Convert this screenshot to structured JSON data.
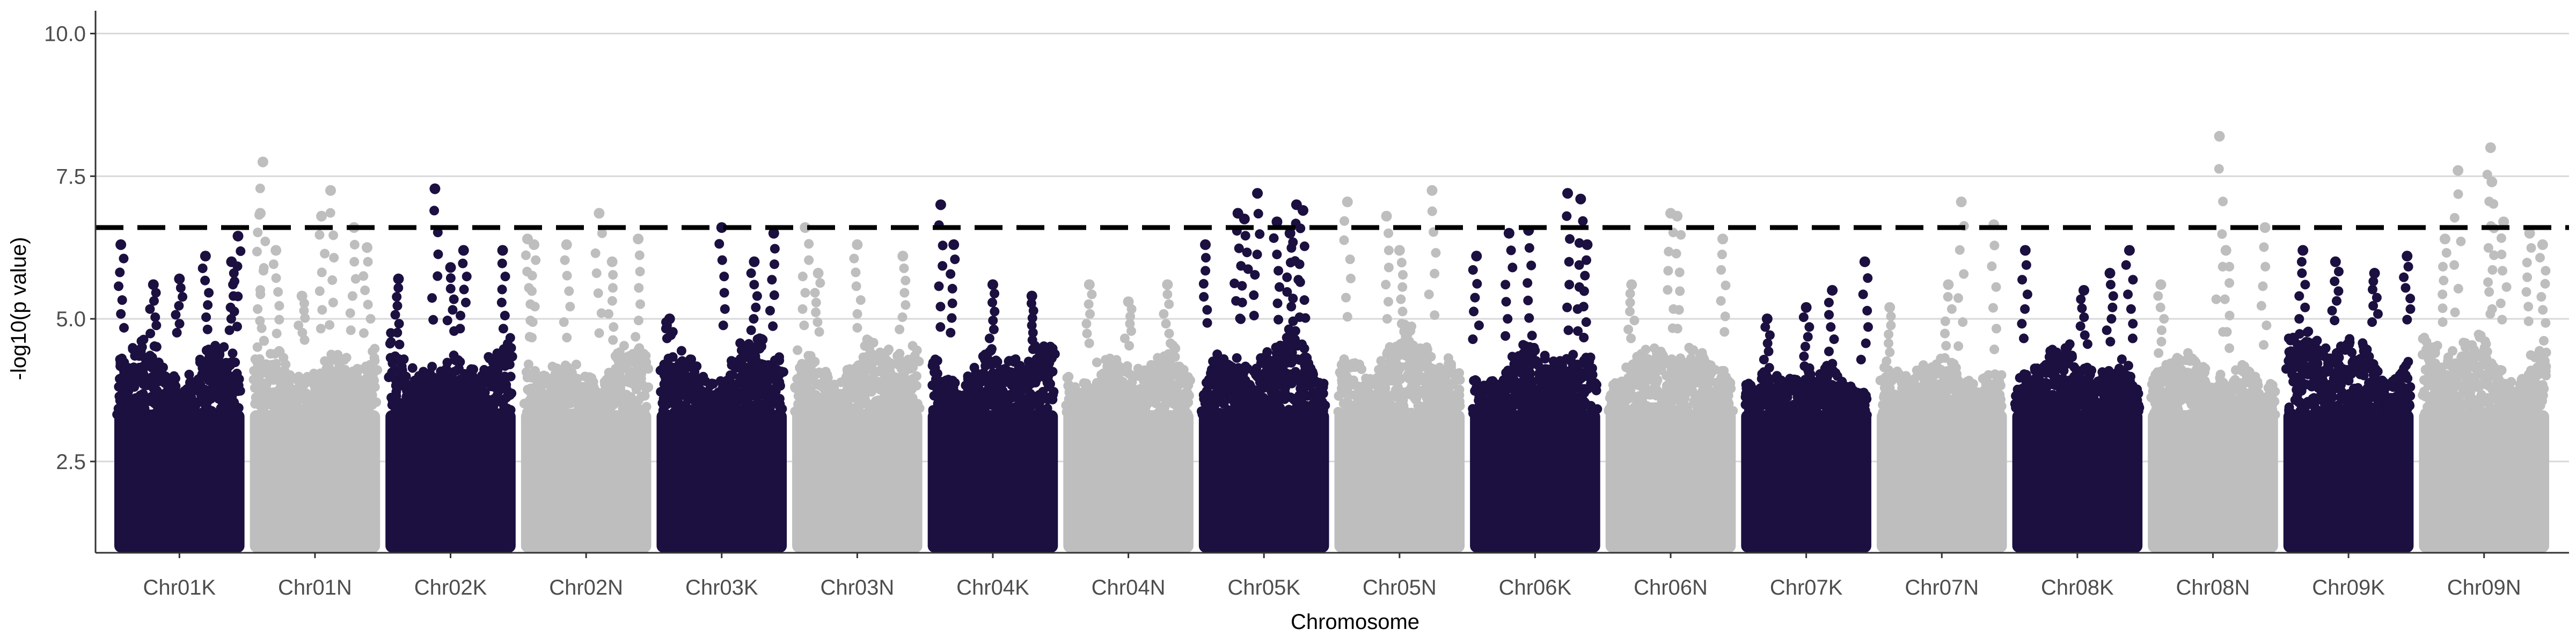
{
  "chart_data": {
    "type": "scatter",
    "subtype": "manhattan",
    "title": "",
    "xlabel": "Chromosome",
    "ylabel": "-log10(p value)",
    "ylim": [
      0.9,
      10.4
    ],
    "y_ticks": [
      2.5,
      5.0,
      7.5,
      10.0
    ],
    "y_tick_labels": [
      "2.5",
      "5.0",
      "7.5",
      "10.0"
    ],
    "grid": "horizontal major lines",
    "legend": "none",
    "threshold": {
      "value": 6.6,
      "style": "dashed",
      "color": "#000000"
    },
    "colors": {
      "odd": "#1b1040",
      "even": "#bebebe",
      "grid": "#d9d9d9",
      "axis": "#333333"
    },
    "categories": [
      "Chr01K",
      "Chr01N",
      "Chr02K",
      "Chr02N",
      "Chr03K",
      "Chr03N",
      "Chr04K",
      "Chr04N",
      "Chr05K",
      "Chr05N",
      "Chr06K",
      "Chr06N",
      "Chr07K",
      "Chr07N",
      "Chr08K",
      "Chr08N",
      "Chr09K",
      "Chr09N"
    ],
    "series": [
      {
        "chromosome": "Chr01K",
        "color": "#1b1040",
        "band_top": 4.6,
        "peaks": [
          [
            0.05,
            6.3
          ],
          [
            0.3,
            5.6
          ],
          [
            0.5,
            5.7
          ],
          [
            0.7,
            6.1
          ],
          [
            0.9,
            6.0
          ],
          [
            0.95,
            6.45
          ]
        ]
      },
      {
        "chromosome": "Chr01N",
        "color": "#bebebe",
        "band_top": 4.5,
        "peaks": [
          [
            0.1,
            7.75
          ],
          [
            0.08,
            6.85
          ],
          [
            0.2,
            6.2
          ],
          [
            0.4,
            5.4
          ],
          [
            0.55,
            6.8
          ],
          [
            0.62,
            7.25
          ],
          [
            0.8,
            6.6
          ],
          [
            0.9,
            6.25
          ]
        ]
      },
      {
        "chromosome": "Chr02K",
        "color": "#1b1040",
        "band_top": 4.6,
        "peaks": [
          [
            0.1,
            5.7
          ],
          [
            0.38,
            7.28
          ],
          [
            0.5,
            5.9
          ],
          [
            0.6,
            6.2
          ],
          [
            0.9,
            6.2
          ]
        ]
      },
      {
        "chromosome": "Chr02N",
        "color": "#bebebe",
        "band_top": 4.4,
        "peaks": [
          [
            0.05,
            6.4
          ],
          [
            0.1,
            6.3
          ],
          [
            0.35,
            6.3
          ],
          [
            0.6,
            6.85
          ],
          [
            0.7,
            6.0
          ],
          [
            0.9,
            6.4
          ]
        ]
      },
      {
        "chromosome": "Chr03K",
        "color": "#1b1040",
        "band_top": 4.6,
        "peaks": [
          [
            0.1,
            5.0
          ],
          [
            0.5,
            6.6
          ],
          [
            0.75,
            6.0
          ],
          [
            0.9,
            6.5
          ]
        ]
      },
      {
        "chromosome": "Chr03N",
        "color": "#bebebe",
        "band_top": 4.6,
        "peaks": [
          [
            0.1,
            6.6
          ],
          [
            0.2,
            5.8
          ],
          [
            0.5,
            6.3
          ],
          [
            0.85,
            6.1
          ]
        ]
      },
      {
        "chromosome": "Chr04K",
        "color": "#1b1040",
        "band_top": 4.5,
        "peaks": [
          [
            0.1,
            7.0
          ],
          [
            0.2,
            6.3
          ],
          [
            0.5,
            5.6
          ],
          [
            0.8,
            5.4
          ]
        ]
      },
      {
        "chromosome": "Chr04N",
        "color": "#bebebe",
        "band_top": 4.4,
        "peaks": [
          [
            0.2,
            5.6
          ],
          [
            0.5,
            5.3
          ],
          [
            0.8,
            5.6
          ]
        ]
      },
      {
        "chromosome": "Chr05K",
        "color": "#1b1040",
        "band_top": 4.7,
        "peaks": [
          [
            0.05,
            6.3
          ],
          [
            0.3,
            6.85
          ],
          [
            0.35,
            6.75
          ],
          [
            0.45,
            7.2
          ],
          [
            0.6,
            6.7
          ],
          [
            0.7,
            6.5
          ],
          [
            0.75,
            7.0
          ],
          [
            0.8,
            6.9
          ]
        ]
      },
      {
        "chromosome": "Chr05N",
        "color": "#bebebe",
        "band_top": 4.7,
        "peaks": [
          [
            0.1,
            7.05
          ],
          [
            0.4,
            6.8
          ],
          [
            0.5,
            6.2
          ],
          [
            0.75,
            7.25
          ]
        ]
      },
      {
        "chromosome": "Chr06K",
        "color": "#1b1040",
        "band_top": 4.4,
        "peaks": [
          [
            0.05,
            6.1
          ],
          [
            0.3,
            6.5
          ],
          [
            0.45,
            6.55
          ],
          [
            0.75,
            7.2
          ],
          [
            0.85,
            7.1
          ],
          [
            0.9,
            6.3
          ]
        ]
      },
      {
        "chromosome": "Chr06N",
        "color": "#bebebe",
        "band_top": 4.5,
        "peaks": [
          [
            0.2,
            5.6
          ],
          [
            0.5,
            6.85
          ],
          [
            0.55,
            6.8
          ],
          [
            0.9,
            6.4
          ]
        ]
      },
      {
        "chromosome": "Chr07K",
        "color": "#1b1040",
        "band_top": 4.0,
        "peaks": [
          [
            0.2,
            5.0
          ],
          [
            0.5,
            5.2
          ],
          [
            0.7,
            5.5
          ],
          [
            0.95,
            6.0
          ]
        ]
      },
      {
        "chromosome": "Chr07N",
        "color": "#bebebe",
        "band_top": 4.1,
        "peaks": [
          [
            0.1,
            5.2
          ],
          [
            0.55,
            5.6
          ],
          [
            0.65,
            7.05
          ],
          [
            0.9,
            6.65
          ]
        ]
      },
      {
        "chromosome": "Chr08K",
        "color": "#1b1040",
        "band_top": 4.4,
        "peaks": [
          [
            0.1,
            6.2
          ],
          [
            0.55,
            5.5
          ],
          [
            0.75,
            5.8
          ],
          [
            0.9,
            6.2
          ]
        ]
      },
      {
        "chromosome": "Chr08N",
        "color": "#bebebe",
        "band_top": 4.2,
        "peaks": [
          [
            0.1,
            5.6
          ],
          [
            0.55,
            8.2
          ],
          [
            0.6,
            6.2
          ],
          [
            0.9,
            6.6
          ]
        ]
      },
      {
        "chromosome": "Chr09K",
        "color": "#1b1040",
        "band_top": 4.8,
        "peaks": [
          [
            0.15,
            6.2
          ],
          [
            0.4,
            6.0
          ],
          [
            0.7,
            5.8
          ],
          [
            0.95,
            6.1
          ]
        ]
      },
      {
        "chromosome": "Chr09N",
        "color": "#bebebe",
        "band_top": 4.7,
        "peaks": [
          [
            0.2,
            6.4
          ],
          [
            0.3,
            7.6
          ],
          [
            0.55,
            8.0
          ],
          [
            0.56,
            7.4
          ],
          [
            0.65,
            6.7
          ],
          [
            0.85,
            6.5
          ],
          [
            0.95,
            6.3
          ]
        ]
      }
    ]
  }
}
